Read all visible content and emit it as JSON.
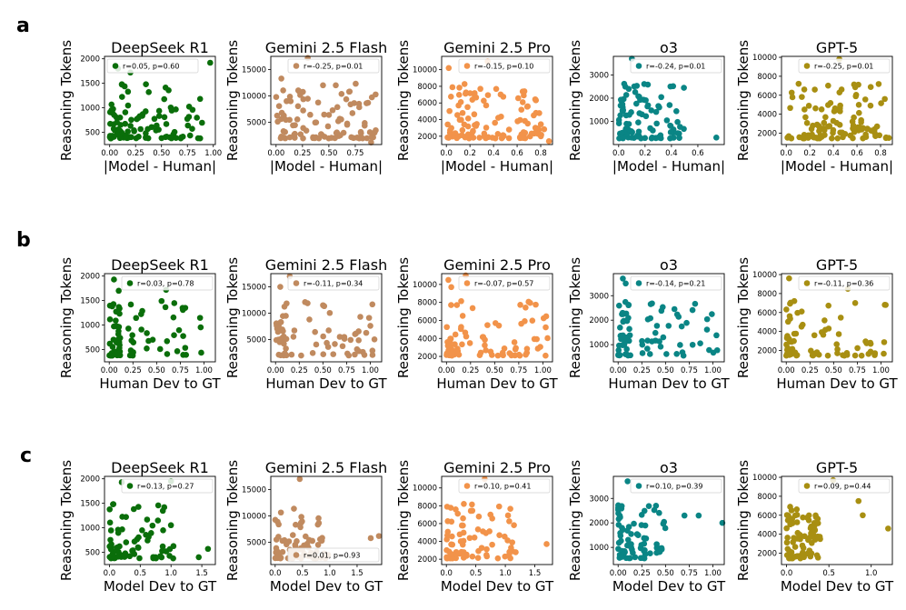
{
  "panel_letters": [
    "a",
    "b",
    "c"
  ],
  "colors": {
    "DeepSeek R1": "#0a6e0a",
    "Gemini 2.5 Flash": "#c08a5f",
    "Gemini 2.5 Pro": "#f2934a",
    "o3": "#0a8585",
    "GPT-5": "#a88f12"
  },
  "chart_data": [
    {
      "type": "scatter",
      "row": "a",
      "title": "DeepSeek R1",
      "xlabel": "|Model - Human|",
      "ylabel": "Reasoning Tokens",
      "xlim": [
        -0.05,
        1.02
      ],
      "ylim": [
        250,
        2050
      ],
      "xticks": [
        0.0,
        0.25,
        0.5,
        0.75,
        1.0
      ],
      "xtick_labels": [
        "0.00",
        "0.25",
        "0.50",
        "0.75",
        "1.00"
      ],
      "yticks": [
        500,
        1000,
        1500,
        2000
      ],
      "ytick_labels": [
        "500",
        "1000",
        "1500",
        "2000"
      ],
      "legend": "r=0.05, p=0.60",
      "legend_loc": "upper-left",
      "seed": 11,
      "n": 100,
      "xshape": "skew",
      "xmax": 0.9,
      "yshape": "skew",
      "outliers": [
        [
          0.97,
          1920
        ],
        [
          0.08,
          1800
        ],
        [
          0.2,
          1720
        ],
        [
          0.35,
          1480
        ],
        [
          0.8,
          960
        ]
      ]
    },
    {
      "type": "scatter",
      "row": "a",
      "title": "Gemini 2.5 Flash",
      "xlabel": "|Model - Human|",
      "ylabel": "Reasoning Tokens",
      "xlim": [
        -0.05,
        1.0
      ],
      "ylim": [
        800,
        17500
      ],
      "xticks": [
        0.0,
        0.25,
        0.5,
        0.75
      ],
      "xtick_labels": [
        "0.00",
        "0.25",
        "0.50",
        "0.75"
      ],
      "yticks": [
        5000,
        10000,
        15000
      ],
      "ytick_labels": [
        "5000",
        "10000",
        "15000"
      ],
      "legend": "r=-0.25, p=0.01",
      "legend_loc": "upper-right",
      "seed": 22,
      "n": 100,
      "xshape": "uniform",
      "xmax": 0.95,
      "yshape": "skew",
      "outliers": [
        [
          0.05,
          13300
        ],
        [
          0.3,
          17200
        ],
        [
          0.9,
          1200
        ]
      ]
    },
    {
      "type": "scatter",
      "row": "a",
      "title": "Gemini 2.5 Pro",
      "xlabel": "|Model - Human|",
      "ylabel": "Reasoning Tokens",
      "xlim": [
        -0.04,
        0.9
      ],
      "ylim": [
        1000,
        11600
      ],
      "xticks": [
        0.0,
        0.2,
        0.4,
        0.6,
        0.8
      ],
      "xtick_labels": [
        "0.0",
        "0.2",
        "0.4",
        "0.6",
        "0.8"
      ],
      "yticks": [
        2000,
        4000,
        6000,
        8000,
        10000
      ],
      "ytick_labels": [
        "2000",
        "4000",
        "6000",
        "8000",
        "10000"
      ],
      "legend": "r=-0.15, p=0.10",
      "legend_loc": "upper-right",
      "seed": 33,
      "n": 110,
      "xshape": "uniform",
      "xmax": 0.85,
      "yshape": "skew",
      "outliers": [
        [
          0.02,
          10200
        ],
        [
          0.35,
          11000
        ],
        [
          0.87,
          1400
        ]
      ]
    },
    {
      "type": "scatter",
      "row": "a",
      "title": "o3",
      "xlabel": "|Model - Human|",
      "ylabel": "Reasoning Tokens",
      "xlim": [
        -0.04,
        0.8
      ],
      "ylim": [
        0,
        3800
      ],
      "xticks": [
        0.0,
        0.2,
        0.4,
        0.6
      ],
      "xtick_labels": [
        "0.0",
        "0.2",
        "0.4",
        "0.6"
      ],
      "yticks": [
        1000,
        2000,
        3000
      ],
      "ytick_labels": [
        "1000",
        "2000",
        "3000"
      ],
      "legend": "r=-0.24, p=0.01",
      "legend_loc": "upper-right",
      "seed": 44,
      "n": 100,
      "xshape": "skew",
      "xmax": 0.5,
      "yshape": "skew",
      "outliers": [
        [
          0.1,
          3700
        ],
        [
          0.74,
          300
        ]
      ]
    },
    {
      "type": "scatter",
      "row": "a",
      "title": "GPT-5",
      "xlabel": "|Model - Human|",
      "ylabel": "Reasoning Tokens",
      "xlim": [
        -0.04,
        0.9
      ],
      "ylim": [
        800,
        10100
      ],
      "xticks": [
        0.0,
        0.2,
        0.4,
        0.6,
        0.8
      ],
      "xtick_labels": [
        "0.0",
        "0.2",
        "0.4",
        "0.6",
        "0.8"
      ],
      "yticks": [
        2000,
        4000,
        6000,
        8000,
        10000
      ],
      "ytick_labels": [
        "2000",
        "4000",
        "6000",
        "8000",
        "10000"
      ],
      "legend": "r=-0.25, p=0.01",
      "legend_loc": "upper-right",
      "seed": 55,
      "n": 110,
      "xshape": "uniform",
      "xmax": 0.85,
      "yshape": "skew",
      "outliers": [
        [
          0.45,
          9800
        ],
        [
          0.87,
          1500
        ]
      ]
    },
    {
      "type": "scatter",
      "row": "b",
      "title": "DeepSeek R1",
      "xlabel": "Human Dev to GT",
      "ylabel": "Reasoning Tokens",
      "xlim": [
        -0.05,
        1.12
      ],
      "ylim": [
        250,
        2050
      ],
      "xticks": [
        0.0,
        0.25,
        0.5,
        0.75,
        1.0
      ],
      "xtick_labels": [
        "0.00",
        "0.25",
        "0.50",
        "0.75",
        "1.00"
      ],
      "yticks": [
        500,
        1000,
        1500,
        2000
      ],
      "ytick_labels": [
        "500",
        "1000",
        "1500",
        "2000"
      ],
      "legend": "r=0.03, p=0.78",
      "legend_loc": "upper-right",
      "seed": 66,
      "n": 75,
      "xshape": "cluster",
      "xmax": 1.08,
      "yshape": "skew",
      "outliers": [
        [
          0.05,
          1930
        ],
        [
          0.6,
          1720
        ],
        [
          0.1,
          1700
        ]
      ]
    },
    {
      "type": "scatter",
      "row": "b",
      "title": "Gemini 2.5 Flash",
      "xlabel": "Human Dev to GT",
      "ylabel": "Reasoning Tokens",
      "xlim": [
        -0.05,
        1.12
      ],
      "ylim": [
        800,
        17500
      ],
      "xticks": [
        0.0,
        0.25,
        0.5,
        0.75,
        1.0
      ],
      "xtick_labels": [
        "0.00",
        "0.25",
        "0.50",
        "0.75",
        "1.00"
      ],
      "yticks": [
        5000,
        10000,
        15000
      ],
      "ytick_labels": [
        "5000",
        "10000",
        "15000"
      ],
      "legend": "r=-0.11, p=0.34",
      "legend_loc": "upper-right",
      "seed": 77,
      "n": 75,
      "xshape": "cluster",
      "xmax": 1.08,
      "yshape": "skew",
      "outliers": [
        [
          0.15,
          17000
        ],
        [
          0.05,
          15000
        ]
      ]
    },
    {
      "type": "scatter",
      "row": "b",
      "title": "Gemini 2.5 Pro",
      "xlabel": "Human Dev to GT",
      "ylabel": "Reasoning Tokens",
      "xlim": [
        -0.05,
        1.1
      ],
      "ylim": [
        1400,
        11200
      ],
      "xticks": [
        0.0,
        0.25,
        0.5,
        0.75,
        1.0
      ],
      "xtick_labels": [
        "0.00",
        "0.25",
        "0.50",
        "0.75",
        "1.00"
      ],
      "yticks": [
        2000,
        4000,
        6000,
        8000,
        10000
      ],
      "ytick_labels": [
        "2000",
        "4000",
        "6000",
        "8000",
        "10000"
      ],
      "legend": "r=-0.07, p=0.57",
      "legend_loc": "upper-right",
      "seed": 88,
      "n": 80,
      "xshape": "cluster",
      "xmax": 1.05,
      "yshape": "skew",
      "outliers": [
        [
          0.02,
          10500
        ],
        [
          0.2,
          11000
        ],
        [
          0.05,
          9700
        ]
      ]
    },
    {
      "type": "scatter",
      "row": "b",
      "title": "o3",
      "xlabel": "Human Dev to GT",
      "ylabel": "Reasoning Tokens",
      "xlim": [
        -0.05,
        1.12
      ],
      "ylim": [
        300,
        3900
      ],
      "xticks": [
        0.0,
        0.25,
        0.5,
        0.75,
        1.0
      ],
      "xtick_labels": [
        "0.00",
        "0.25",
        "0.50",
        "0.75",
        "1.00"
      ],
      "yticks": [
        1000,
        2000,
        3000
      ],
      "ytick_labels": [
        "1000",
        "2000",
        "3000"
      ],
      "legend": "r=-0.14, p=0.21",
      "legend_loc": "upper-right",
      "seed": 99,
      "n": 80,
      "xshape": "cluster",
      "xmax": 1.08,
      "yshape": "skew",
      "outliers": [
        [
          0.05,
          3700
        ],
        [
          0.08,
          3500
        ]
      ]
    },
    {
      "type": "scatter",
      "row": "b",
      "title": "GPT-5",
      "xlabel": "Human Dev to GT",
      "ylabel": "Reasoning Tokens",
      "xlim": [
        -0.05,
        1.12
      ],
      "ylim": [
        800,
        10100
      ],
      "xticks": [
        0.0,
        0.25,
        0.5,
        0.75,
        1.0
      ],
      "xtick_labels": [
        "0.00",
        "0.25",
        "0.50",
        "0.75",
        "1.00"
      ],
      "yticks": [
        2000,
        4000,
        6000,
        8000,
        10000
      ],
      "ytick_labels": [
        "2000",
        "4000",
        "6000",
        "8000",
        "10000"
      ],
      "legend": "r=-0.11, p=0.36",
      "legend_loc": "upper-right",
      "seed": 111,
      "n": 75,
      "xshape": "cluster",
      "xmax": 1.08,
      "yshape": "skew",
      "outliers": [
        [
          0.03,
          9600
        ],
        [
          0.65,
          8500
        ],
        [
          1.05,
          6800
        ]
      ]
    },
    {
      "type": "scatter",
      "row": "c",
      "title": "DeepSeek R1",
      "xlabel": "Model Dev to GT",
      "ylabel": "Reasoning Tokens",
      "xlim": [
        -0.08,
        1.72
      ],
      "ylim": [
        250,
        2050
      ],
      "xticks": [
        0.0,
        0.5,
        1.0,
        1.5
      ],
      "xtick_labels": [
        "0.0",
        "0.5",
        "1.0",
        "1.5"
      ],
      "yticks": [
        500,
        1000,
        1500,
        2000
      ],
      "ytick_labels": [
        "500",
        "1000",
        "1500",
        "2000"
      ],
      "legend": "r=0.13, p=0.27",
      "legend_loc": "upper-right",
      "seed": 122,
      "n": 75,
      "xshape": "skew",
      "xmax": 1.1,
      "yshape": "skew",
      "outliers": [
        [
          1.0,
          1950
        ],
        [
          0.2,
          1930
        ],
        [
          1.6,
          570
        ],
        [
          1.45,
          400
        ]
      ]
    },
    {
      "type": "scatter",
      "row": "c",
      "title": "Gemini 2.5 Flash",
      "xlabel": "Model Dev to GT",
      "ylabel": "Reasoning Tokens",
      "xlim": [
        -0.08,
        1.95
      ],
      "ylim": [
        800,
        17500
      ],
      "xticks": [
        0.0,
        0.5,
        1.0,
        1.5
      ],
      "xtick_labels": [
        "0.0",
        "0.5",
        "1.0",
        "1.5"
      ],
      "yticks": [
        5000,
        10000,
        15000
      ],
      "ytick_labels": [
        "5000",
        "10000",
        "15000"
      ],
      "legend": "r=0.01, p=0.93",
      "legend_loc": "lower-right",
      "seed": 133,
      "n": 75,
      "xshape": "skew",
      "xmax": 1.0,
      "yshape": "skew",
      "outliers": [
        [
          0.45,
          17000
        ],
        [
          1.75,
          5800
        ],
        [
          1.9,
          6200
        ]
      ]
    },
    {
      "type": "scatter",
      "row": "c",
      "title": "Gemini 2.5 Pro",
      "xlabel": "Model Dev to GT",
      "ylabel": "Reasoning Tokens",
      "xlim": [
        -0.08,
        1.8
      ],
      "ylim": [
        1400,
        11300
      ],
      "xticks": [
        0.0,
        0.5,
        1.0,
        1.5
      ],
      "xtick_labels": [
        "0.0",
        "0.5",
        "1.0",
        "1.5"
      ],
      "yticks": [
        2000,
        4000,
        6000,
        8000,
        10000
      ],
      "ytick_labels": [
        "2000",
        "4000",
        "6000",
        "8000",
        "10000"
      ],
      "legend": "r=0.10, p=0.41",
      "legend_loc": "upper-right",
      "seed": 144,
      "n": 80,
      "xshape": "skew",
      "xmax": 1.2,
      "yshape": "skew",
      "outliers": [
        [
          0.65,
          11000
        ],
        [
          1.7,
          3700
        ],
        [
          0.9,
          4700
        ]
      ]
    },
    {
      "type": "scatter",
      "row": "c",
      "title": "o3",
      "xlabel": "Model Dev to GT",
      "ylabel": "Reasoning Tokens",
      "xlim": [
        -0.05,
        1.12
      ],
      "ylim": [
        300,
        3900
      ],
      "xticks": [
        0.0,
        0.25,
        0.5,
        0.75,
        1.0
      ],
      "xtick_labels": [
        "0.00",
        "0.25",
        "0.50",
        "0.75",
        "1.00"
      ],
      "yticks": [
        1000,
        2000,
        3000
      ],
      "ytick_labels": [
        "1000",
        "2000",
        "3000"
      ],
      "legend": "r=0.10, p=0.39",
      "legend_loc": "upper-right",
      "seed": 155,
      "n": 75,
      "xshape": "skew",
      "xmax": 0.5,
      "yshape": "skew",
      "outliers": [
        [
          0.1,
          3700
        ],
        [
          0.7,
          2300
        ],
        [
          0.85,
          2300
        ],
        [
          1.1,
          2000
        ]
      ]
    },
    {
      "type": "scatter",
      "row": "c",
      "title": "GPT-5",
      "xlabel": "Model Dev to GT",
      "ylabel": "Reasoning Tokens",
      "xlim": [
        -0.06,
        1.25
      ],
      "ylim": [
        800,
        10100
      ],
      "xticks": [
        0.0,
        0.5,
        1.0
      ],
      "xtick_labels": [
        "0.0",
        "0.5",
        "1.0"
      ],
      "yticks": [
        2000,
        4000,
        6000,
        8000,
        10000
      ],
      "ytick_labels": [
        "2000",
        "4000",
        "6000",
        "8000",
        "10000"
      ],
      "legend": "r=0.09, p=0.44",
      "legend_loc": "upper-right",
      "seed": 166,
      "n": 75,
      "xshape": "skew",
      "xmax": 0.4,
      "yshape": "skew",
      "outliers": [
        [
          0.55,
          9700
        ],
        [
          0.85,
          7500
        ],
        [
          0.9,
          6000
        ],
        [
          1.2,
          4600
        ]
      ]
    }
  ]
}
